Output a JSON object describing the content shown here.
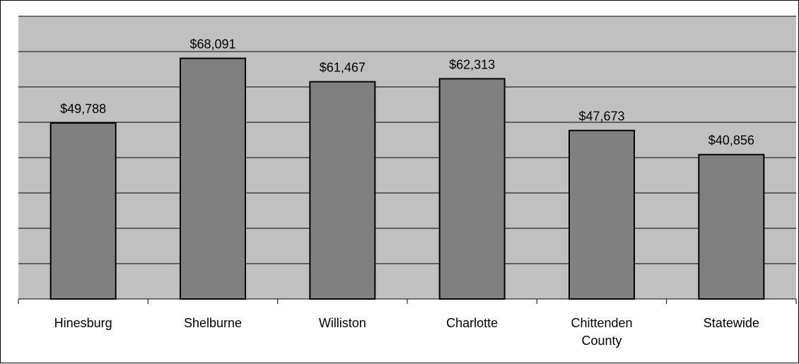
{
  "chart_data": {
    "type": "bar",
    "categories": [
      "Hinesburg",
      "Shelburne",
      "Williston",
      "Charlotte",
      "Chittenden County",
      "Statewide"
    ],
    "category_lines": [
      [
        "Hinesburg"
      ],
      [
        "Shelburne"
      ],
      [
        "Williston"
      ],
      [
        "Charlotte"
      ],
      [
        "Chittenden",
        "County"
      ],
      [
        "Statewide"
      ]
    ],
    "values": [
      49788,
      68091,
      61467,
      62313,
      47673,
      40856
    ],
    "value_labels": [
      "$49,788",
      "$68,091",
      "$61,467",
      "$62,313",
      "$47,673",
      "$40,856"
    ],
    "ylim": [
      0,
      80000
    ],
    "y_gridlines": [
      10000,
      20000,
      30000,
      40000,
      50000,
      60000,
      70000,
      80000
    ],
    "grid": true,
    "legend": "none",
    "colors": {
      "bar": "#808080",
      "plot_background": "#c0c0c0",
      "grid": "#000000"
    }
  }
}
